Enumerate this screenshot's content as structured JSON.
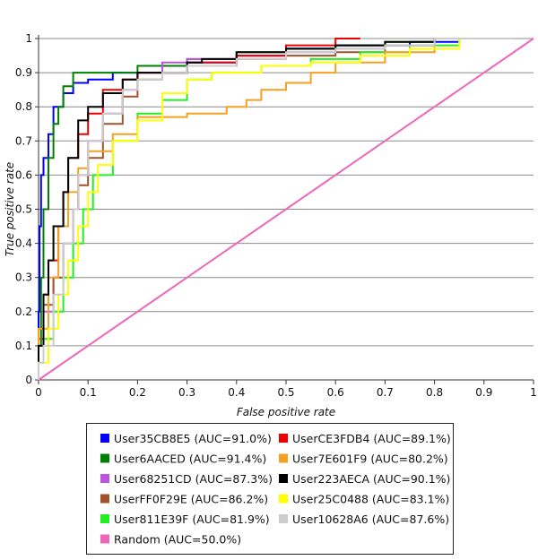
{
  "chart_data": {
    "type": "line",
    "title": "",
    "xlabel": "False positive rate",
    "ylabel": "True positive rate",
    "xlim": [
      0,
      1
    ],
    "ylim": [
      0,
      1
    ],
    "x_ticks": [
      "0",
      "0.1",
      "0.2",
      "0.3",
      "0.4",
      "0.5",
      "0.6",
      "0.7",
      "0.8",
      "0.9",
      "1"
    ],
    "y_ticks": [
      "0",
      "0.1",
      "0.2",
      "0.3",
      "0.4",
      "0.5",
      "0.6",
      "0.7",
      "0.8",
      "0.9",
      "1"
    ],
    "grid": "horizontal",
    "legend_placement": "bottom",
    "series": [
      {
        "name": "User35CB8E5 (AUC=91.0%)",
        "color": "#0000ff",
        "points": [
          [
            0,
            0
          ],
          [
            0.002,
            0.2
          ],
          [
            0.005,
            0.45
          ],
          [
            0.01,
            0.6
          ],
          [
            0.02,
            0.65
          ],
          [
            0.03,
            0.72
          ],
          [
            0.05,
            0.8
          ],
          [
            0.07,
            0.84
          ],
          [
            0.1,
            0.87
          ],
          [
            0.15,
            0.88
          ],
          [
            0.3,
            0.9
          ],
          [
            0.4,
            0.93
          ],
          [
            0.5,
            0.95
          ],
          [
            0.6,
            0.97
          ],
          [
            0.75,
            0.98
          ],
          [
            0.85,
            0.99
          ],
          [
            0.96,
            1
          ]
        ]
      },
      {
        "name": "User6AACED (AUC=91.4%)",
        "color": "#008000",
        "points": [
          [
            0,
            0
          ],
          [
            0.005,
            0.1
          ],
          [
            0.01,
            0.3
          ],
          [
            0.02,
            0.5
          ],
          [
            0.03,
            0.65
          ],
          [
            0.04,
            0.75
          ],
          [
            0.05,
            0.8
          ],
          [
            0.07,
            0.86
          ],
          [
            0.09,
            0.9
          ],
          [
            0.2,
            0.9
          ],
          [
            0.3,
            0.92
          ],
          [
            0.4,
            0.94
          ],
          [
            0.5,
            0.96
          ],
          [
            0.6,
            0.97
          ],
          [
            0.7,
            0.98
          ],
          [
            0.8,
            0.99
          ],
          [
            0.96,
            1
          ]
        ]
      },
      {
        "name": "User68251CD (AUC=87.3%)",
        "color": "#bb55dd",
        "points": [
          [
            0,
            0
          ],
          [
            0.01,
            0.1
          ],
          [
            0.03,
            0.2
          ],
          [
            0.05,
            0.3
          ],
          [
            0.07,
            0.4
          ],
          [
            0.08,
            0.5
          ],
          [
            0.1,
            0.6
          ],
          [
            0.13,
            0.7
          ],
          [
            0.17,
            0.78
          ],
          [
            0.2,
            0.85
          ],
          [
            0.25,
            0.9
          ],
          [
            0.3,
            0.93
          ],
          [
            0.4,
            0.94
          ],
          [
            0.5,
            0.95
          ],
          [
            0.6,
            0.96
          ],
          [
            0.7,
            0.97
          ],
          [
            0.8,
            0.98
          ],
          [
            0.96,
            1
          ]
        ]
      },
      {
        "name": "UserFF0F29E (AUC=86.2%)",
        "color": "#a0522d",
        "points": [
          [
            0,
            0
          ],
          [
            0.01,
            0.12
          ],
          [
            0.03,
            0.22
          ],
          [
            0.05,
            0.3
          ],
          [
            0.07,
            0.4
          ],
          [
            0.08,
            0.5
          ],
          [
            0.1,
            0.57
          ],
          [
            0.13,
            0.65
          ],
          [
            0.17,
            0.75
          ],
          [
            0.2,
            0.83
          ],
          [
            0.25,
            0.88
          ],
          [
            0.3,
            0.9
          ],
          [
            0.4,
            0.92
          ],
          [
            0.5,
            0.94
          ],
          [
            0.6,
            0.95
          ],
          [
            0.7,
            0.96
          ],
          [
            0.8,
            0.98
          ],
          [
            0.96,
            1
          ]
        ]
      },
      {
        "name": "User811E39F (AUC=81.9%)",
        "color": "#22ee22",
        "points": [
          [
            0,
            0
          ],
          [
            0.01,
            0.05
          ],
          [
            0.03,
            0.12
          ],
          [
            0.05,
            0.2
          ],
          [
            0.07,
            0.3
          ],
          [
            0.09,
            0.4
          ],
          [
            0.11,
            0.5
          ],
          [
            0.15,
            0.6
          ],
          [
            0.2,
            0.7
          ],
          [
            0.25,
            0.78
          ],
          [
            0.3,
            0.82
          ],
          [
            0.35,
            0.88
          ],
          [
            0.45,
            0.9
          ],
          [
            0.55,
            0.92
          ],
          [
            0.65,
            0.94
          ],
          [
            0.75,
            0.96
          ],
          [
            0.85,
            0.98
          ],
          [
            0.96,
            1
          ]
        ]
      },
      {
        "name": "Random (AUC=50.0%)",
        "color": "#ee66bb",
        "points": [
          [
            0,
            0
          ],
          [
            1,
            1
          ]
        ]
      },
      {
        "name": "UserCE3FDB4 (AUC=89.1%)",
        "color": "#ee0000",
        "points": [
          [
            0,
            0
          ],
          [
            0.01,
            0.15
          ],
          [
            0.02,
            0.25
          ],
          [
            0.04,
            0.35
          ],
          [
            0.05,
            0.45
          ],
          [
            0.06,
            0.55
          ],
          [
            0.08,
            0.65
          ],
          [
            0.1,
            0.72
          ],
          [
            0.13,
            0.78
          ],
          [
            0.17,
            0.85
          ],
          [
            0.2,
            0.88
          ],
          [
            0.3,
            0.9
          ],
          [
            0.4,
            0.93
          ],
          [
            0.5,
            0.95
          ],
          [
            0.6,
            0.98
          ],
          [
            0.65,
            1
          ]
        ]
      },
      {
        "name": "User7E601F9 (AUC=80.2%)",
        "color": "#f5a020",
        "points": [
          [
            0,
            0
          ],
          [
            0.02,
            0.15
          ],
          [
            0.04,
            0.3
          ],
          [
            0.06,
            0.45
          ],
          [
            0.08,
            0.55
          ],
          [
            0.1,
            0.62
          ],
          [
            0.15,
            0.67
          ],
          [
            0.2,
            0.72
          ],
          [
            0.3,
            0.77
          ],
          [
            0.38,
            0.78
          ],
          [
            0.42,
            0.8
          ],
          [
            0.45,
            0.82
          ],
          [
            0.5,
            0.85
          ],
          [
            0.55,
            0.87
          ],
          [
            0.6,
            0.9
          ],
          [
            0.7,
            0.93
          ],
          [
            0.8,
            0.96
          ],
          [
            0.96,
            1
          ]
        ]
      },
      {
        "name": "User223AECA (AUC=90.1%)",
        "color": "#000000",
        "points": [
          [
            0,
            0
          ],
          [
            0.01,
            0.1
          ],
          [
            0.02,
            0.25
          ],
          [
            0.03,
            0.35
          ],
          [
            0.05,
            0.45
          ],
          [
            0.06,
            0.55
          ],
          [
            0.08,
            0.65
          ],
          [
            0.1,
            0.76
          ],
          [
            0.13,
            0.8
          ],
          [
            0.17,
            0.84
          ],
          [
            0.2,
            0.88
          ],
          [
            0.3,
            0.9
          ],
          [
            0.33,
            0.93
          ],
          [
            0.4,
            0.94
          ],
          [
            0.5,
            0.96
          ],
          [
            0.6,
            0.97
          ],
          [
            0.7,
            0.98
          ],
          [
            0.8,
            0.99
          ],
          [
            0.96,
            1
          ]
        ]
      },
      {
        "name": "User25C0488 (AUC=83.1%)",
        "color": "#ffff00",
        "points": [
          [
            0,
            0
          ],
          [
            0.02,
            0.05
          ],
          [
            0.04,
            0.15
          ],
          [
            0.06,
            0.25
          ],
          [
            0.08,
            0.35
          ],
          [
            0.1,
            0.45
          ],
          [
            0.12,
            0.55
          ],
          [
            0.15,
            0.63
          ],
          [
            0.2,
            0.7
          ],
          [
            0.25,
            0.76
          ],
          [
            0.3,
            0.84
          ],
          [
            0.35,
            0.88
          ],
          [
            0.45,
            0.9
          ],
          [
            0.55,
            0.92
          ],
          [
            0.65,
            0.93
          ],
          [
            0.75,
            0.95
          ],
          [
            0.85,
            0.97
          ],
          [
            0.96,
            1
          ]
        ]
      },
      {
        "name": "User10628A6 (AUC=87.6%)",
        "color": "#cccccc",
        "points": [
          [
            0,
            0
          ],
          [
            0.01,
            0.05
          ],
          [
            0.03,
            0.1
          ],
          [
            0.05,
            0.25
          ],
          [
            0.07,
            0.4
          ],
          [
            0.08,
            0.5
          ],
          [
            0.1,
            0.6
          ],
          [
            0.13,
            0.7
          ],
          [
            0.17,
            0.78
          ],
          [
            0.2,
            0.85
          ],
          [
            0.25,
            0.88
          ],
          [
            0.3,
            0.9
          ],
          [
            0.4,
            0.92
          ],
          [
            0.5,
            0.94
          ],
          [
            0.6,
            0.96
          ],
          [
            0.7,
            0.97
          ],
          [
            0.8,
            0.98
          ],
          [
            0.96,
            1
          ]
        ]
      }
    ],
    "legend_order": [
      "User35CB8E5 (AUC=91.0%)",
      "UserCE3FDB4 (AUC=89.1%)",
      "User6AACED (AUC=91.4%)",
      "User7E601F9 (AUC=80.2%)",
      "User68251CD (AUC=87.3%)",
      "User223AECA (AUC=90.1%)",
      "UserFF0F29E (AUC=86.2%)",
      "User25C0488 (AUC=83.1%)",
      "User811E39F (AUC=81.9%)",
      "User10628A6 (AUC=87.6%)",
      "Random (AUC=50.0%)"
    ]
  }
}
